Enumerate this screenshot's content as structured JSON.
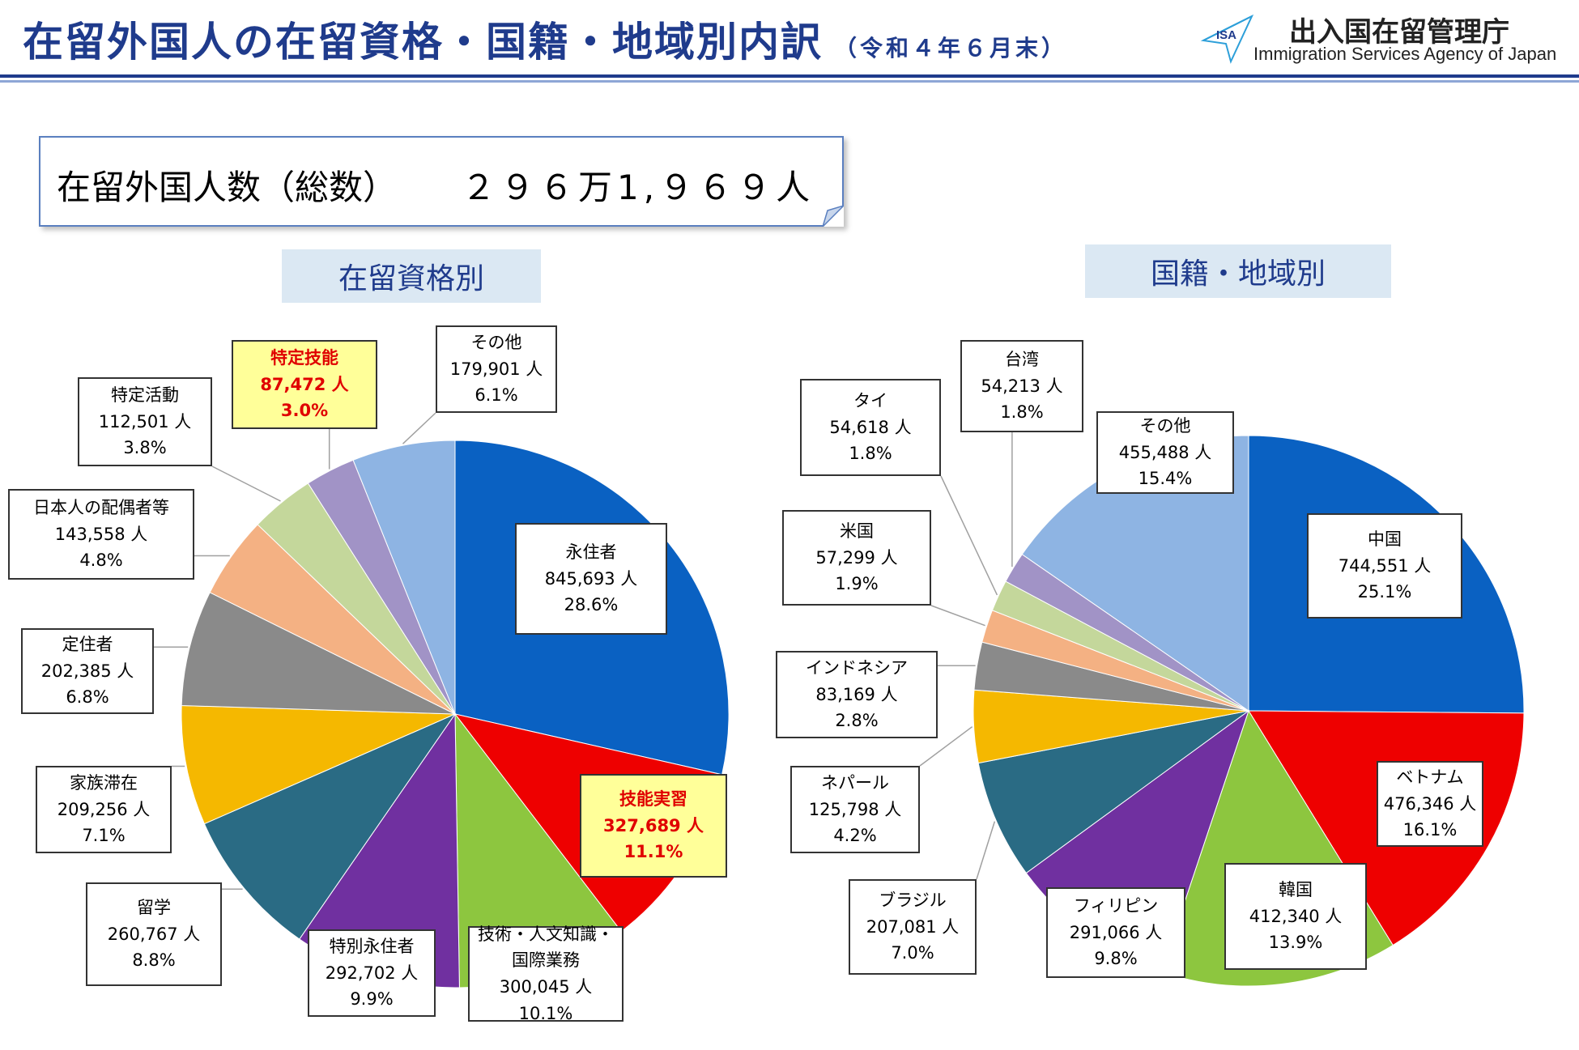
{
  "header": {
    "title": "在留外国人の在留資格・国籍・地域別内訳",
    "date": "（令和４年６月末）",
    "agency_jp": "出入国在留管理庁",
    "agency_en": "Immigration Services Agency of Japan",
    "logo_text": "ISA",
    "accent_color": "#1f3b8c"
  },
  "total": {
    "label": "在留外国人数（総数）",
    "value": "２９６万1,９６９人"
  },
  "chart_data": [
    {
      "type": "pie",
      "title": "在留資格別",
      "unit": "人",
      "slices": [
        {
          "name": "永住者",
          "value": 845693,
          "value_text": "845,693",
          "percent": "28.6%",
          "color": "#0a61c2",
          "highlight": false
        },
        {
          "name": "技能実習",
          "value": 327689,
          "value_text": "327,689",
          "percent": "11.1%",
          "color": "#ee0000",
          "highlight": true
        },
        {
          "name": "技術・人文知識・国際業務",
          "value": 300045,
          "value_text": "300,045",
          "percent": "10.1%",
          "color": "#8dc63f",
          "highlight": false
        },
        {
          "name": "特別永住者",
          "value": 292702,
          "value_text": "292,702",
          "percent": "9.9%",
          "color": "#7030a0",
          "highlight": false
        },
        {
          "name": "留学",
          "value": 260767,
          "value_text": "260,767",
          "percent": "8.8%",
          "color": "#2a6b84",
          "highlight": false
        },
        {
          "name": "家族滞在",
          "value": 209256,
          "value_text": "209,256",
          "percent": "7.1%",
          "color": "#f5b800",
          "highlight": false
        },
        {
          "name": "定住者",
          "value": 202385,
          "value_text": "202,385",
          "percent": "6.8%",
          "color": "#8a8a8a",
          "highlight": false
        },
        {
          "name": "日本人の配偶者等",
          "value": 143558,
          "value_text": "143,558",
          "percent": "4.8%",
          "color": "#f4b183",
          "highlight": false
        },
        {
          "name": "特定活動",
          "value": 112501,
          "value_text": "112,501",
          "percent": "3.8%",
          "color": "#c4d79b",
          "highlight": false
        },
        {
          "name": "特定技能",
          "value": 87472,
          "value_text": "87,472",
          "percent": "3.0%",
          "color": "#a193c6",
          "highlight": true
        },
        {
          "name": "その他",
          "value": 179901,
          "value_text": "179,901",
          "percent": "6.1%",
          "color": "#8eb4e3",
          "highlight": false
        }
      ]
    },
    {
      "type": "pie",
      "title": "国籍・地域別",
      "unit": "人",
      "slices": [
        {
          "name": "中国",
          "value": 744551,
          "value_text": "744,551",
          "percent": "25.1%",
          "color": "#0a61c2",
          "highlight": false
        },
        {
          "name": "ベトナム",
          "value": 476346,
          "value_text": "476,346",
          "percent": "16.1%",
          "color": "#ee0000",
          "highlight": false
        },
        {
          "name": "韓国",
          "value": 412340,
          "value_text": "412,340",
          "percent": "13.9%",
          "color": "#8dc63f",
          "highlight": false
        },
        {
          "name": "フィリピン",
          "value": 291066,
          "value_text": "291,066",
          "percent": "9.8%",
          "color": "#7030a0",
          "highlight": false
        },
        {
          "name": "ブラジル",
          "value": 207081,
          "value_text": "207,081",
          "percent": "7.0%",
          "color": "#2a6b84",
          "highlight": false
        },
        {
          "name": "ネパール",
          "value": 125798,
          "value_text": "125,798",
          "percent": "4.2%",
          "color": "#f5b800",
          "highlight": false
        },
        {
          "name": "インドネシア",
          "value": 83169,
          "value_text": "83,169",
          "percent": "2.8%",
          "color": "#8a8a8a",
          "highlight": false
        },
        {
          "name": "米国",
          "value": 57299,
          "value_text": "57,299",
          "percent": "1.9%",
          "color": "#f4b183",
          "highlight": false
        },
        {
          "name": "タイ",
          "value": 54618,
          "value_text": "54,618",
          "percent": "1.8%",
          "color": "#c4d79b",
          "highlight": false
        },
        {
          "name": "台湾",
          "value": 54213,
          "value_text": "54,213",
          "percent": "1.8%",
          "color": "#a193c6",
          "highlight": false
        },
        {
          "name": "その他",
          "value": 455488,
          "value_text": "455,488",
          "percent": "15.4%",
          "color": "#8eb4e3",
          "highlight": false
        }
      ]
    }
  ]
}
